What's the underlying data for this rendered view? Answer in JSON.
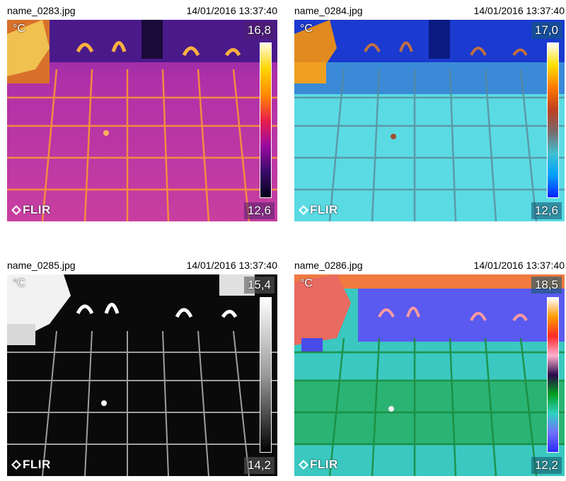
{
  "panels": [
    {
      "filename": "name_0283.jpg",
      "timestamp": "14/01/2016 13:37:40",
      "unit": "°C",
      "max_temp": "16,8",
      "min_temp": "12,6",
      "palette": "iron",
      "logo": "FLIR"
    },
    {
      "filename": "name_0284.jpg",
      "timestamp": "14/01/2016 13:37:40",
      "unit": "°C",
      "max_temp": "17,0",
      "min_temp": "12,6",
      "palette": "arctic",
      "logo": "FLIR"
    },
    {
      "filename": "name_0285.jpg",
      "timestamp": "14/01/2016 13:37:40",
      "unit": "°C",
      "max_temp": "15,4",
      "min_temp": "14,2",
      "palette": "white-hot",
      "logo": "FLIR"
    },
    {
      "filename": "name_0286.jpg",
      "timestamp": "14/01/2016 13:37:40",
      "unit": "°C",
      "max_temp": "18,5",
      "min_temp": "12,2",
      "palette": "rainbow",
      "logo": "FLIR"
    }
  ]
}
